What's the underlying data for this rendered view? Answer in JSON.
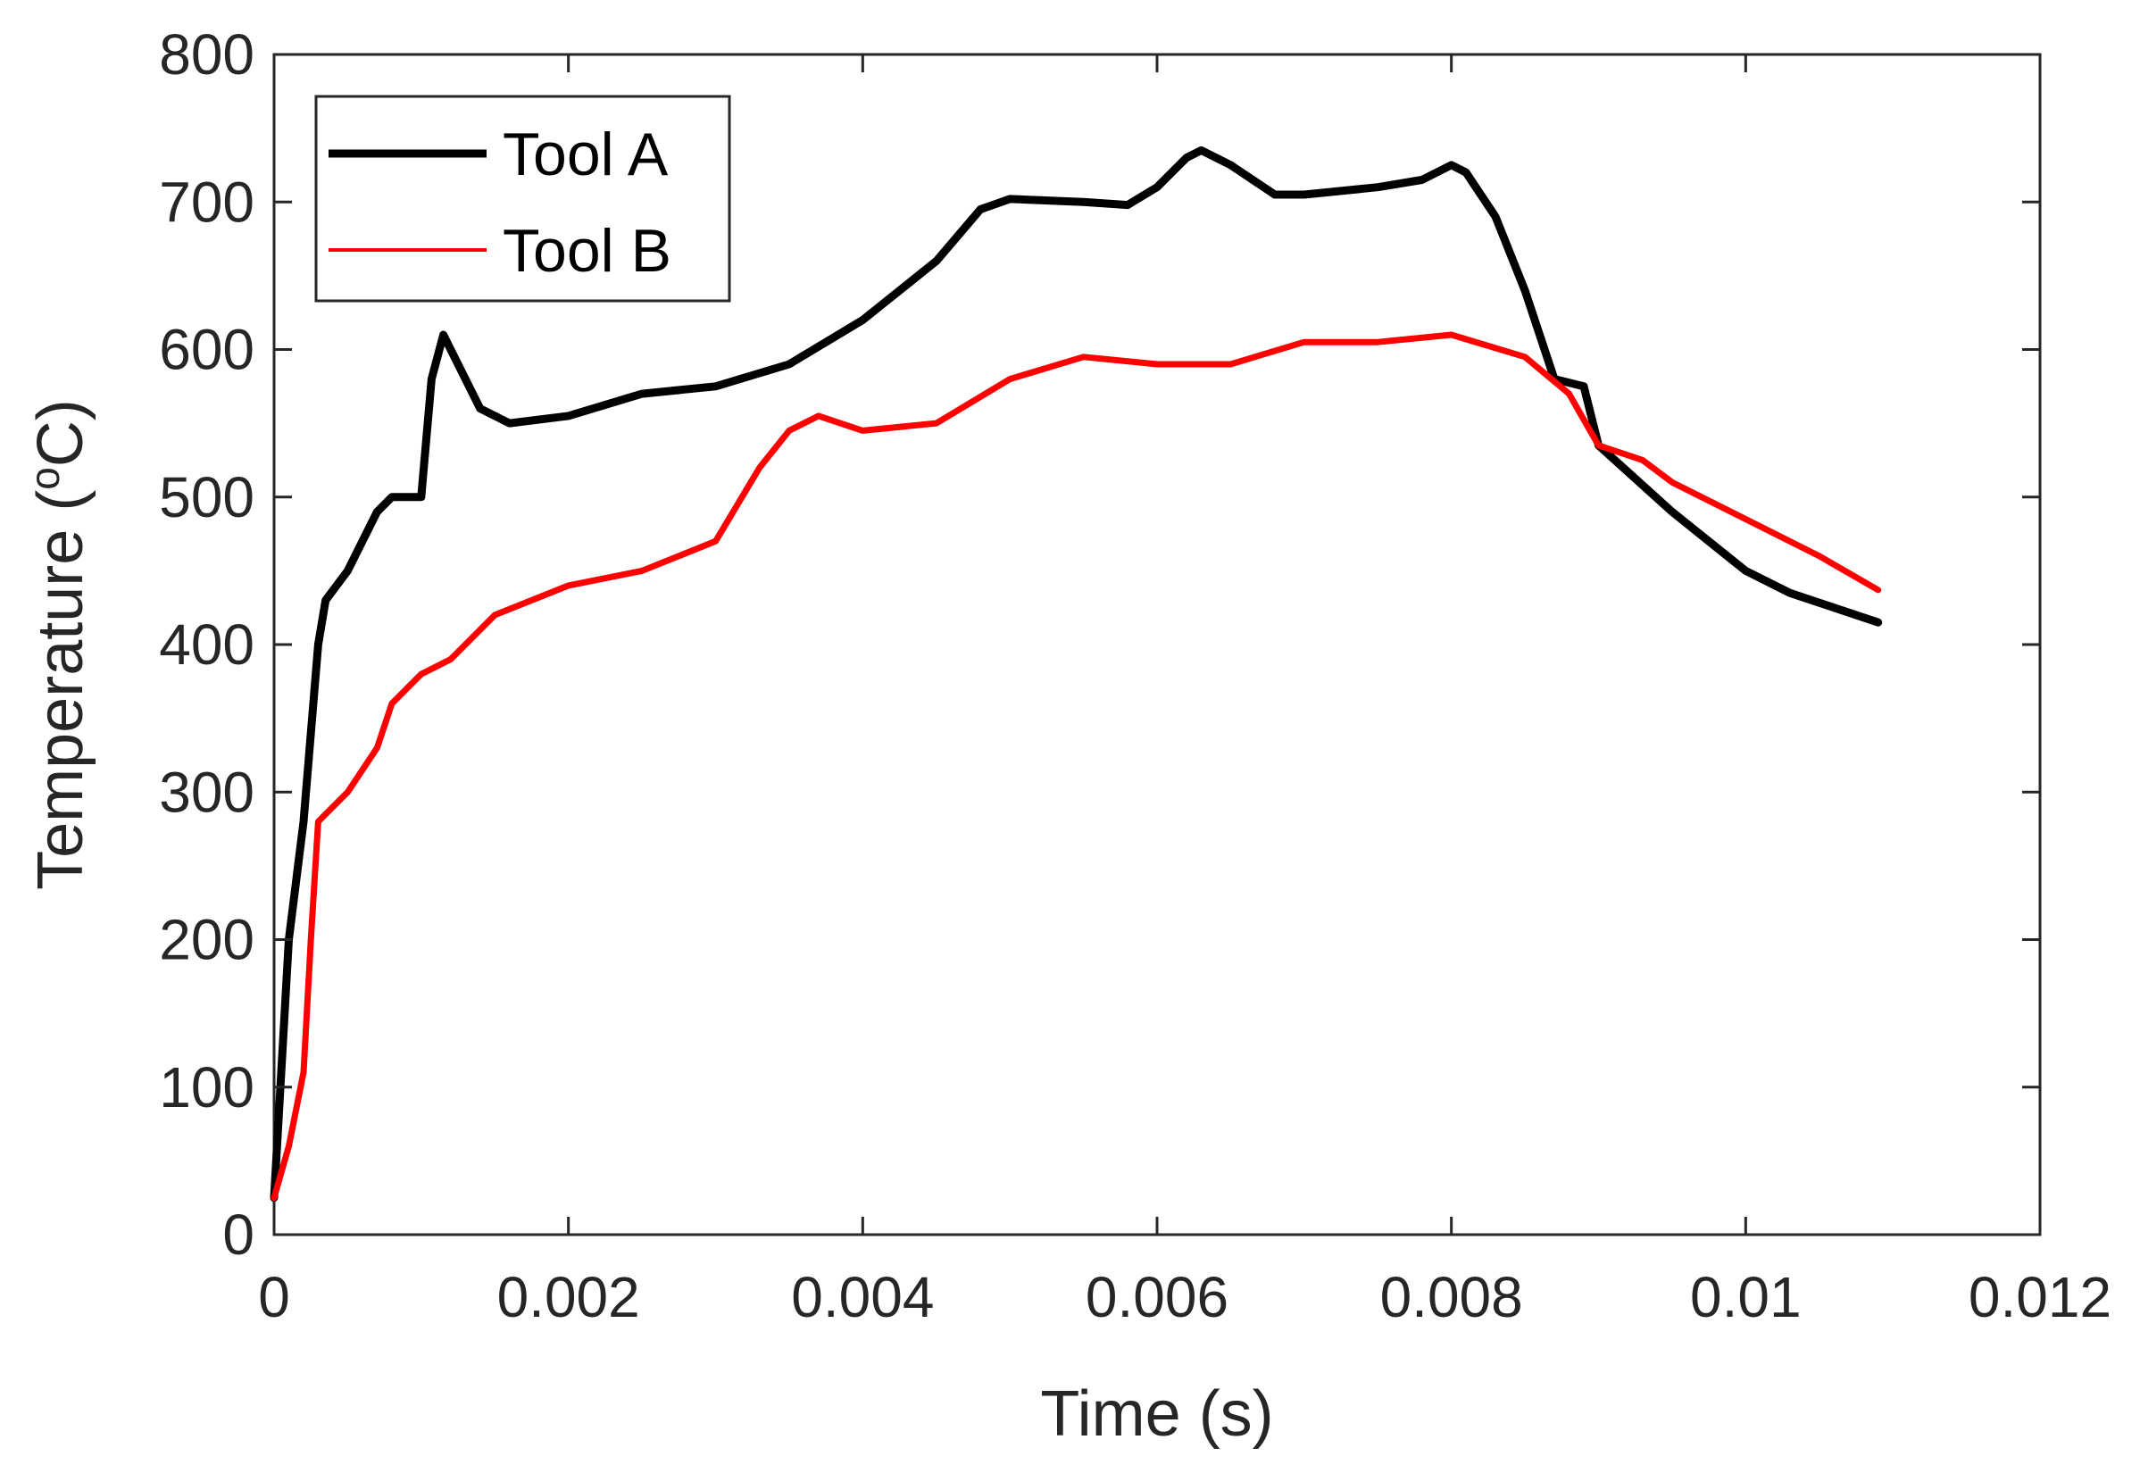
{
  "chart_data": {
    "type": "line",
    "xlabel": "Time (s)",
    "ylabel_main": "Temperature (",
    "ylabel_sup": "o",
    "ylabel_end": "C)",
    "xlim": [
      0,
      0.012
    ],
    "ylim": [
      0,
      800
    ],
    "x_ticks": [
      0,
      0.002,
      0.004,
      0.006,
      0.008,
      0.01,
      0.012
    ],
    "x_tick_labels": [
      "0",
      "0.002",
      "0.004",
      "0.006",
      "0.008",
      "0.01",
      "0.012"
    ],
    "y_ticks": [
      0,
      100,
      200,
      300,
      400,
      500,
      600,
      700,
      800
    ],
    "y_tick_labels": [
      "0",
      "100",
      "200",
      "300",
      "400",
      "500",
      "600",
      "700",
      "800"
    ],
    "grid": false,
    "legend_position": "top-left",
    "series": [
      {
        "name": "Tool A",
        "color": "#000000",
        "x": [
          0,
          0.0001,
          0.0002,
          0.0003,
          0.00035,
          0.0005,
          0.0007,
          0.0008,
          0.001,
          0.00107,
          0.00115,
          0.0012,
          0.0014,
          0.0016,
          0.002,
          0.0025,
          0.003,
          0.0035,
          0.004,
          0.0045,
          0.0048,
          0.005,
          0.0055,
          0.0058,
          0.006,
          0.0062,
          0.0063,
          0.0065,
          0.0068,
          0.007,
          0.0075,
          0.0078,
          0.008,
          0.0081,
          0.0083,
          0.0085,
          0.0087,
          0.0089,
          0.009,
          0.0095,
          0.01,
          0.0103,
          0.0109
        ],
        "y": [
          25,
          200,
          280,
          400,
          430,
          450,
          490,
          500,
          500,
          580,
          610,
          600,
          560,
          550,
          555,
          570,
          575,
          590,
          620,
          660,
          695,
          702,
          700,
          698,
          710,
          730,
          735,
          725,
          705,
          705,
          710,
          715,
          725,
          720,
          690,
          640,
          580,
          575,
          535,
          490,
          450,
          435,
          415
        ]
      },
      {
        "name": "Tool B",
        "color": "#ff0000",
        "x": [
          0,
          0.0001,
          0.0002,
          0.00025,
          0.0003,
          0.0005,
          0.0007,
          0.0008,
          0.001,
          0.0012,
          0.0015,
          0.002,
          0.0025,
          0.003,
          0.0033,
          0.0035,
          0.0037,
          0.004,
          0.0045,
          0.005,
          0.0055,
          0.006,
          0.0065,
          0.007,
          0.0075,
          0.008,
          0.0085,
          0.0088,
          0.009,
          0.0093,
          0.0095,
          0.01,
          0.0105,
          0.0109
        ],
        "y": [
          25,
          60,
          110,
          200,
          280,
          300,
          330,
          360,
          380,
          390,
          420,
          440,
          450,
          470,
          520,
          545,
          555,
          545,
          550,
          580,
          595,
          590,
          590,
          605,
          605,
          610,
          595,
          570,
          535,
          525,
          510,
          485,
          460,
          437
        ]
      }
    ]
  }
}
